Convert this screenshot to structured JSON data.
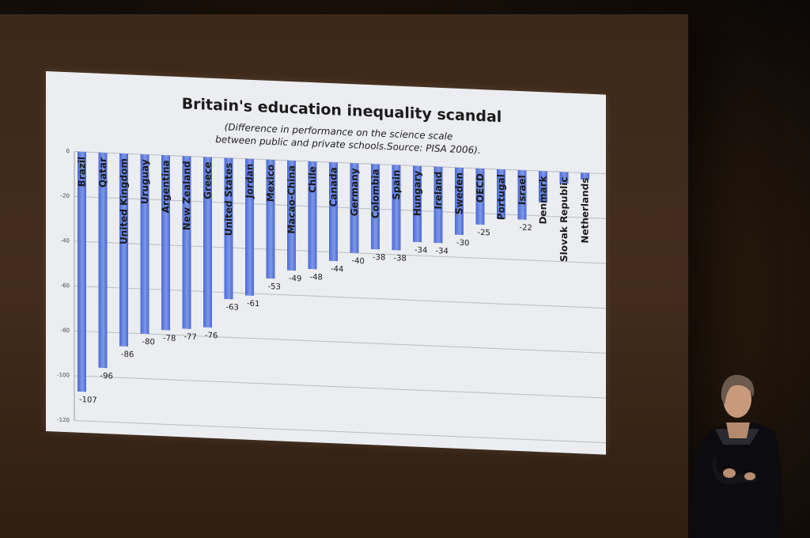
{
  "chart_data": {
    "type": "bar",
    "title": "Britain's education inequality scandal",
    "subtitle_lines": [
      "(Difference in performance on the science scale",
      "between public and private schools.Source: PISA 2006)."
    ],
    "xlabel": "",
    "ylabel": "",
    "ylim": [
      -120,
      0
    ],
    "yticks": [
      0,
      -20,
      -40,
      -60,
      -80,
      -100,
      -120
    ],
    "ytick_labels": [
      "0",
      "-20",
      "-40",
      "-60",
      "-80",
      "-100",
      "-120"
    ],
    "grid": true,
    "categories": [
      "Brazil",
      "Qatar",
      "United Kingdom",
      "Uruguay",
      "Argentina",
      "New Zealand",
      "Greece",
      "United States",
      "Jordan",
      "Mexico",
      "Macao-China",
      "Chile",
      "Canada",
      "Germany",
      "Colombia",
      "Spain",
      "Hungary",
      "Ireland",
      "Sweden",
      "OECD",
      "Portugal",
      "Israel",
      "Denmark",
      "Slovak Republic",
      "Netherlands"
    ],
    "values": [
      -107,
      -96,
      -86,
      -80,
      -78,
      -77,
      -76,
      -63,
      -61,
      -53,
      -49,
      -48,
      -44,
      -40,
      -38,
      -38,
      -34,
      -34,
      -30,
      -25,
      -22,
      -22,
      -14,
      -5,
      -3
    ],
    "value_labels": [
      "-107",
      "-96",
      "-86",
      "-80",
      "-78",
      "-77",
      "-76",
      "-63",
      "-61",
      "-53",
      "-49",
      "-48",
      "-44",
      "-40",
      "-38",
      "-38",
      "-34",
      "-34",
      "-30",
      "-25",
      "",
      "-22",
      "",
      "",
      ""
    ],
    "bar_color": "#5f7fdc"
  }
}
